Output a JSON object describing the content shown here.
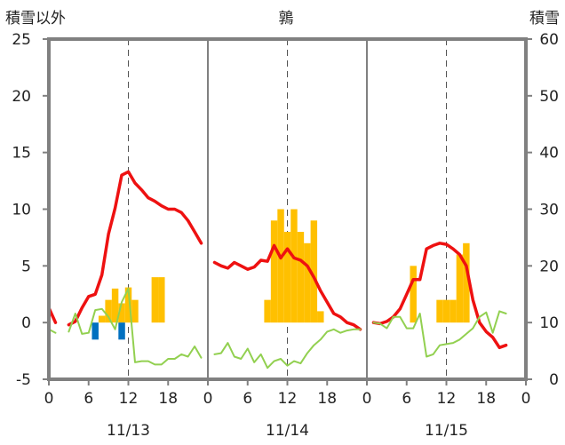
{
  "chart_data": {
    "type": "bar+line",
    "title": "鶉",
    "left_axis_label": "積雪以外",
    "right_axis_label": "積雪",
    "left_ylim": [
      -5,
      25
    ],
    "left_ticks": [
      "25",
      "20",
      "15",
      "10",
      "5",
      "0",
      "-5"
    ],
    "right_ylim": [
      0,
      60
    ],
    "right_ticks": [
      "60",
      "50",
      "40",
      "30",
      "20",
      "10",
      "0"
    ],
    "xlim": [
      0,
      72
    ],
    "x_tick_hours": [
      0,
      6,
      12,
      18,
      24,
      30,
      36,
      42,
      48,
      54,
      60,
      66,
      72
    ],
    "x_tick_labels": [
      "0",
      "6",
      "12",
      "18",
      "0",
      "6",
      "12",
      "18",
      "0",
      "6",
      "12",
      "18",
      "0"
    ],
    "day_labels": [
      {
        "hour": 12,
        "label": "11/13"
      },
      {
        "hour": 36,
        "label": "11/14"
      },
      {
        "hour": 60,
        "label": "11/15"
      }
    ],
    "colors": {
      "frame": "#808080",
      "temperature": "#ee1111",
      "orange_bars": "#ffc000",
      "blue_bars": "#0070c0",
      "green_line": "#92d050",
      "snow_depth": "#7030a0",
      "dashed_grid": "#555555"
    },
    "series": [
      {
        "kind": "line",
        "axis": "left",
        "color": "#ee1111",
        "points": [
          [
            0,
            1.3
          ],
          [
            1,
            0
          ],
          [
            2,
            null
          ],
          [
            3,
            -0.2
          ],
          [
            4,
            0.1
          ],
          [
            5,
            1.3
          ],
          [
            6,
            2.3
          ],
          [
            7,
            2.5
          ],
          [
            8,
            4.2
          ],
          [
            9,
            7.8
          ],
          [
            10,
            10.1
          ],
          [
            11,
            13
          ],
          [
            12,
            13.3
          ],
          [
            13,
            12.3
          ],
          [
            14,
            11.7
          ],
          [
            15,
            11
          ],
          [
            16,
            10.7
          ],
          [
            17,
            10.3
          ],
          [
            18,
            10
          ],
          [
            19,
            10
          ],
          [
            20,
            9.7
          ],
          [
            21,
            9
          ],
          [
            22,
            8
          ],
          [
            23,
            7
          ]
        ]
      },
      {
        "kind": "line",
        "axis": "left",
        "color": "#ee1111",
        "points": [
          [
            25,
            5.3
          ],
          [
            26,
            5
          ],
          [
            27,
            4.8
          ],
          [
            28,
            5.3
          ],
          [
            29,
            5
          ],
          [
            30,
            4.7
          ],
          [
            31,
            4.9
          ],
          [
            32,
            5.5
          ],
          [
            33,
            5.4
          ],
          [
            34,
            6.8
          ],
          [
            35,
            5.7
          ],
          [
            36,
            6.5
          ],
          [
            37,
            5.7
          ],
          [
            38,
            5.5
          ],
          [
            39,
            5
          ],
          [
            40,
            4
          ],
          [
            41,
            2.8
          ],
          [
            42,
            1.8
          ],
          [
            43,
            0.8
          ],
          [
            44,
            0.5
          ],
          [
            45,
            0
          ],
          [
            46,
            -0.2
          ],
          [
            47,
            -0.6
          ]
        ]
      },
      {
        "kind": "line",
        "axis": "left",
        "color": "#ee1111",
        "points": [
          [
            49,
            0
          ],
          [
            50,
            -0.1
          ],
          [
            51,
            0.1
          ],
          [
            52,
            0.5
          ],
          [
            53,
            1.2
          ],
          [
            54,
            2.5
          ],
          [
            55,
            3.8
          ],
          [
            56,
            3.8
          ],
          [
            57,
            6.5
          ],
          [
            58,
            6.8
          ],
          [
            59,
            7
          ],
          [
            60,
            6.9
          ],
          [
            61,
            6.5
          ],
          [
            62,
            6
          ],
          [
            63,
            5
          ],
          [
            64,
            2
          ],
          [
            65,
            0
          ],
          [
            66,
            -0.8
          ],
          [
            67,
            -1.3
          ],
          [
            68,
            -2.2
          ],
          [
            69,
            -2
          ]
        ]
      },
      {
        "kind": "line",
        "axis": "left",
        "color": "#92d050",
        "points": [
          [
            0,
            -0.6
          ],
          [
            1,
            -0.9
          ],
          [
            2,
            null
          ],
          [
            3,
            -0.8
          ],
          [
            4,
            0.8
          ],
          [
            5,
            -1
          ],
          [
            6,
            -0.9
          ],
          [
            7,
            1.1
          ],
          [
            8,
            1.2
          ],
          [
            9,
            0.5
          ],
          [
            10,
            -0.6
          ],
          [
            11,
            1.8
          ],
          [
            12,
            3
          ],
          [
            13,
            -3.5
          ],
          [
            14,
            -3.4
          ],
          [
            15,
            -3.4
          ],
          [
            16,
            -3.7
          ],
          [
            17,
            -3.7
          ],
          [
            18,
            -3.2
          ],
          [
            19,
            -3.2
          ],
          [
            20,
            -2.8
          ],
          [
            21,
            -3
          ],
          [
            22,
            -2.1
          ],
          [
            23,
            -3.1
          ]
        ]
      },
      {
        "kind": "line",
        "axis": "left",
        "color": "#92d050",
        "points": [
          [
            25,
            -2.8
          ],
          [
            26,
            -2.7
          ],
          [
            27,
            -1.8
          ],
          [
            28,
            -3
          ],
          [
            29,
            -3.2
          ],
          [
            30,
            -2.3
          ],
          [
            31,
            -3.5
          ],
          [
            32,
            -2.8
          ],
          [
            33,
            -4
          ],
          [
            34,
            -3.4
          ],
          [
            35,
            -3.2
          ],
          [
            36,
            -3.8
          ],
          [
            37,
            -3.4
          ],
          [
            38,
            -3.6
          ],
          [
            39,
            -2.7
          ],
          [
            40,
            -2
          ],
          [
            41,
            -1.5
          ],
          [
            42,
            -0.8
          ],
          [
            43,
            -0.6
          ],
          [
            44,
            -0.9
          ],
          [
            45,
            -0.7
          ],
          [
            46,
            -0.6
          ],
          [
            47,
            -0.6
          ]
        ]
      },
      {
        "kind": "line",
        "axis": "left",
        "color": "#92d050",
        "points": [
          [
            49,
            0
          ],
          [
            50,
            -0.1
          ],
          [
            51,
            -0.5
          ],
          [
            52,
            0.5
          ],
          [
            53,
            0.5
          ],
          [
            54,
            -0.5
          ],
          [
            55,
            -0.5
          ],
          [
            56,
            0.8
          ],
          [
            57,
            -3
          ],
          [
            58,
            -2.8
          ],
          [
            59,
            -2
          ],
          [
            60,
            -1.9
          ],
          [
            61,
            -1.8
          ],
          [
            62,
            -1.5
          ],
          [
            63,
            -1
          ],
          [
            64,
            -0.5
          ],
          [
            65,
            0.5
          ],
          [
            66,
            0.9
          ],
          [
            67,
            -0.9
          ],
          [
            68,
            1
          ],
          [
            69,
            0.8
          ]
        ]
      },
      {
        "kind": "bar",
        "axis": "left",
        "color": "#ffc000",
        "points": [
          [
            8,
            0.6
          ],
          [
            9,
            2
          ],
          [
            10,
            3
          ],
          [
            11,
            1.7
          ],
          [
            12,
            3.1
          ],
          [
            13,
            2
          ],
          [
            16,
            4
          ],
          [
            17,
            4
          ]
        ]
      },
      {
        "kind": "bar",
        "axis": "left",
        "color": "#ffc000",
        "points": [
          [
            33,
            2
          ],
          [
            34,
            9
          ],
          [
            35,
            10
          ],
          [
            36,
            8
          ],
          [
            37,
            10
          ],
          [
            38,
            8
          ],
          [
            39,
            7
          ],
          [
            40,
            9
          ],
          [
            41,
            1
          ]
        ]
      },
      {
        "kind": "bar",
        "axis": "left",
        "color": "#ffc000",
        "points": [
          [
            55,
            5
          ],
          [
            59,
            2
          ],
          [
            60,
            2
          ],
          [
            61,
            2
          ],
          [
            62,
            6
          ],
          [
            63,
            7
          ]
        ]
      },
      {
        "kind": "bar",
        "axis": "left",
        "color": "#0070c0",
        "points": [
          [
            7,
            -1.5
          ],
          [
            11,
            -1.5
          ]
        ]
      },
      {
        "kind": "line",
        "axis": "right",
        "color": "#7030a0",
        "points": [
          [
            0,
            0
          ],
          [
            72,
            0
          ]
        ]
      }
    ]
  }
}
